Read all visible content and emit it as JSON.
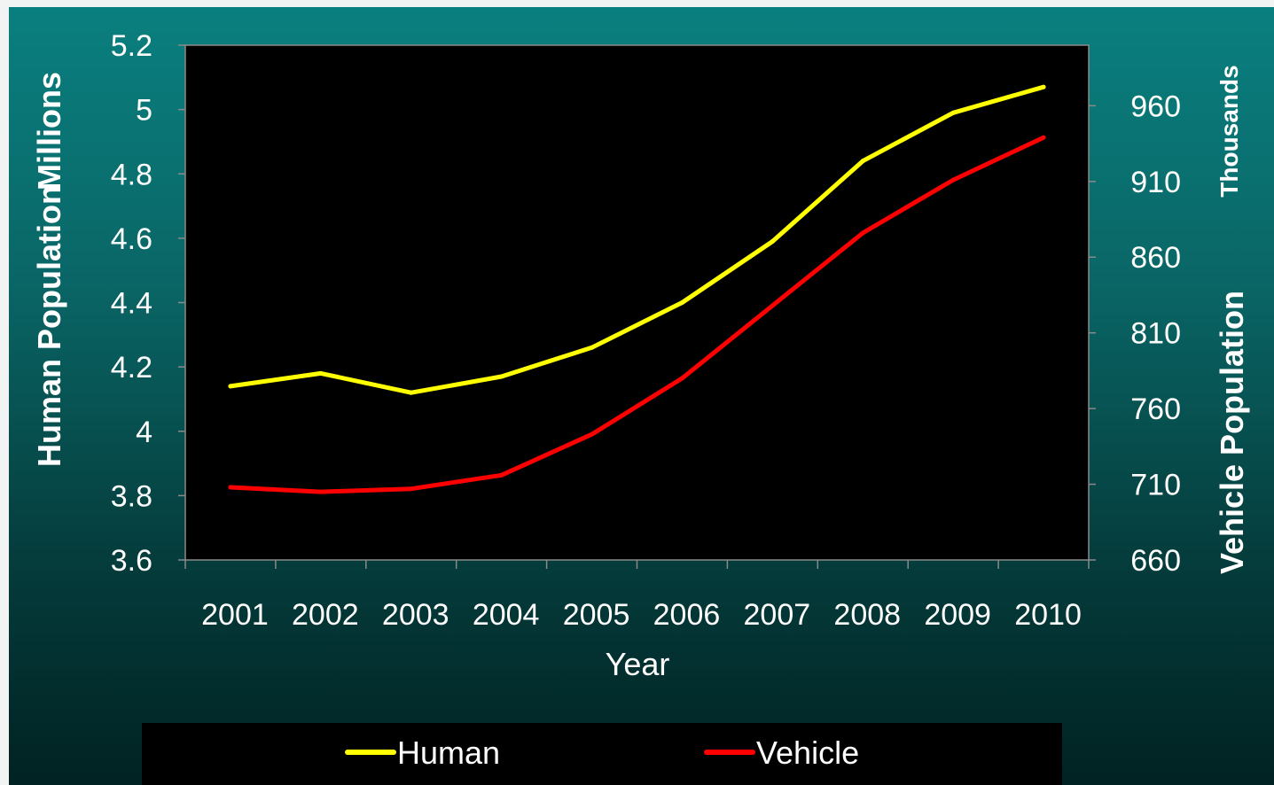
{
  "chart_data": {
    "type": "line",
    "x": [
      "2001",
      "2002",
      "2003",
      "2004",
      "2005",
      "2006",
      "2007",
      "2008",
      "2009",
      "2010"
    ],
    "xlabel": "Year",
    "ylabel_left": "Human Population",
    "ylabel_left_unit": "Millions",
    "ylabel_right": "Vehicle Population",
    "ylabel_right_unit": "Thousands",
    "ylim_left": [
      3.6,
      5.2
    ],
    "ylim_right": [
      660,
      1000
    ],
    "yticks_left": [
      "3.6",
      "3.8",
      "4",
      "4.2",
      "4.4",
      "4.6",
      "4.8",
      "5",
      "5.2"
    ],
    "yticks_right": [
      "660",
      "710",
      "760",
      "810",
      "860",
      "910",
      "960"
    ],
    "grid": false,
    "legend_position": "bottom",
    "series": [
      {
        "name": "Human",
        "axis": "left",
        "color": "#ffff00",
        "values": [
          4.14,
          4.18,
          4.12,
          4.17,
          4.26,
          4.4,
          4.59,
          4.84,
          4.99,
          5.07
        ]
      },
      {
        "name": "Vehicle",
        "axis": "right",
        "color": "#ff0000",
        "values": [
          708,
          705,
          707,
          716,
          743,
          780,
          828,
          876,
          911,
          939
        ]
      }
    ]
  }
}
